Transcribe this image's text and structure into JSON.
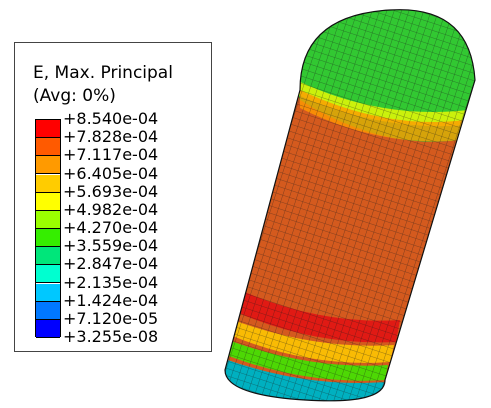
{
  "legend": {
    "title": "E, Max. Principal",
    "subtitle": "(Avg: 0%)",
    "values": [
      "+8.540e-04",
      "+7.828e-04",
      "+7.117e-04",
      "+6.405e-04",
      "+5.693e-04",
      "+4.982e-04",
      "+4.270e-04",
      "+3.559e-04",
      "+2.847e-04",
      "+2.135e-04",
      "+1.424e-04",
      "+7.120e-05",
      "+3.255e-08"
    ],
    "colors": [
      "#ff0000",
      "#ff5a00",
      "#ff9a00",
      "#ffcc00",
      "#ffff00",
      "#9bff00",
      "#35ee00",
      "#00e67a",
      "#00ffd0",
      "#00c8ff",
      "#0078ff",
      "#0000ff"
    ]
  },
  "model": {
    "body_color": "#d45a1e",
    "top_cap_color": "#32c832",
    "band_color": "#e01a14",
    "bottom_color": "#00b0c0"
  }
}
